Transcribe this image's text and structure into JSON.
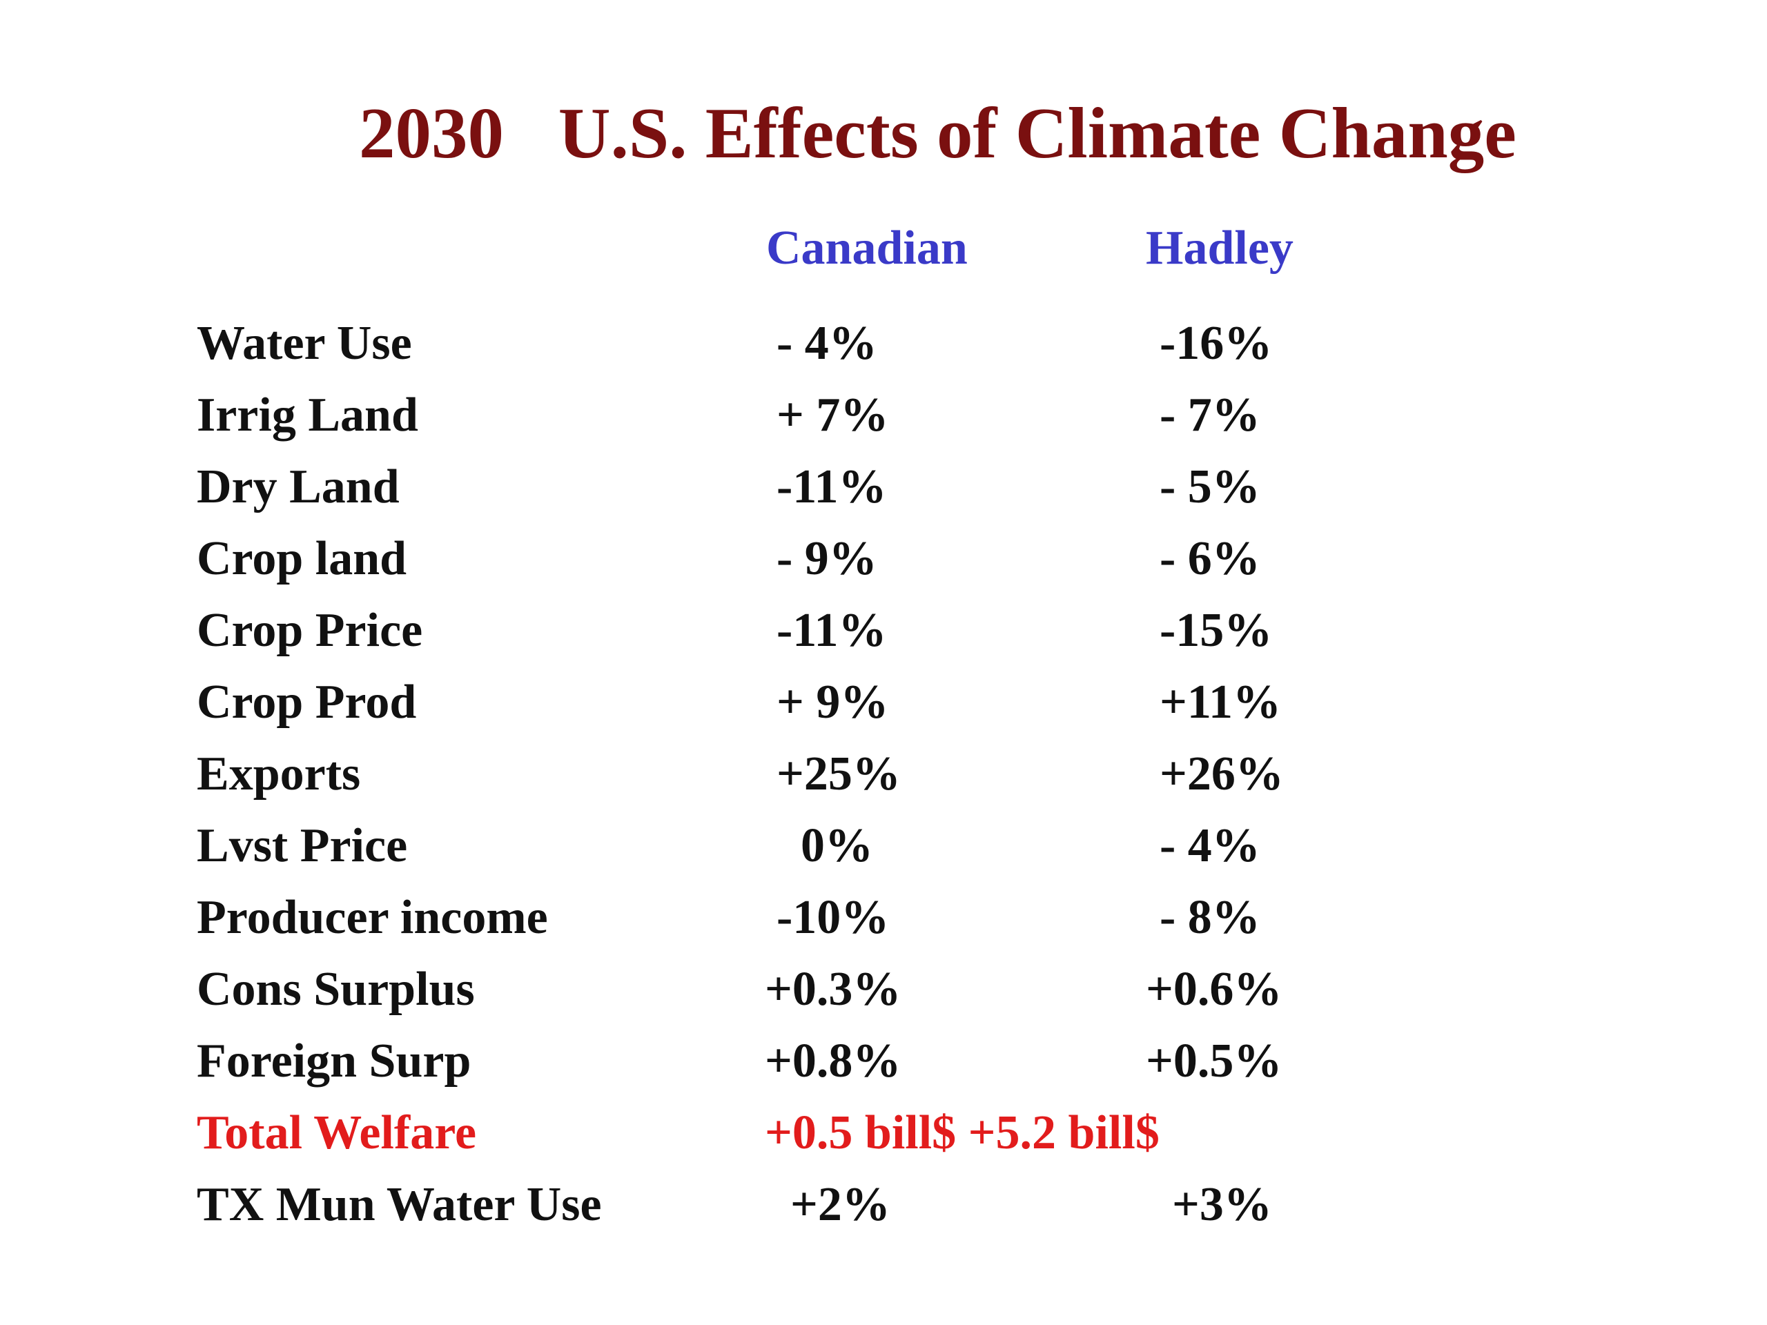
{
  "title": "2030   U.S. Effects of Climate Change",
  "columns": [
    "Canadian",
    "Hadley"
  ],
  "rows": [
    {
      "label": "Water Use",
      "canadian": "- 4%",
      "hadley": "-16%"
    },
    {
      "label": "Irrig Land",
      "canadian": "+ 7%",
      "hadley": "- 7%"
    },
    {
      "label": "Dry Land",
      "canadian": "-11%",
      "hadley": "- 5%"
    },
    {
      "label": "Crop land",
      "canadian": "- 9%",
      "hadley": "- 6%"
    },
    {
      "label": "Crop Price",
      "canadian": "-11%",
      "hadley": "-15%"
    },
    {
      "label": "Crop Prod",
      "canadian": "+ 9%",
      "hadley": "+11%"
    },
    {
      "label": "Exports",
      "canadian": "+25%",
      "hadley": "+26%"
    },
    {
      "label": "Lvst Price",
      "canadian": "0%",
      "hadley": "- 4%"
    },
    {
      "label": "Producer income",
      "canadian": "-10%",
      "hadley": "- 8%"
    },
    {
      "label": "Cons Surplus",
      "canadian": "+0.3%",
      "hadley": "+0.6%"
    },
    {
      "label": "Foreign Surp",
      "canadian": "+0.8%",
      "hadley": "+0.5%"
    }
  ],
  "total_welfare": {
    "label": "Total Welfare",
    "values": "+0.5 bill$ +5.2 bill$"
  },
  "tx_row": {
    "label": "TX Mun Water Use",
    "canadian": "+2%",
    "hadley": "+3%"
  },
  "colors": {
    "title": "#7a1010",
    "header": "#3a3ac8",
    "highlight": "#e21c1c",
    "text": "#111111"
  }
}
